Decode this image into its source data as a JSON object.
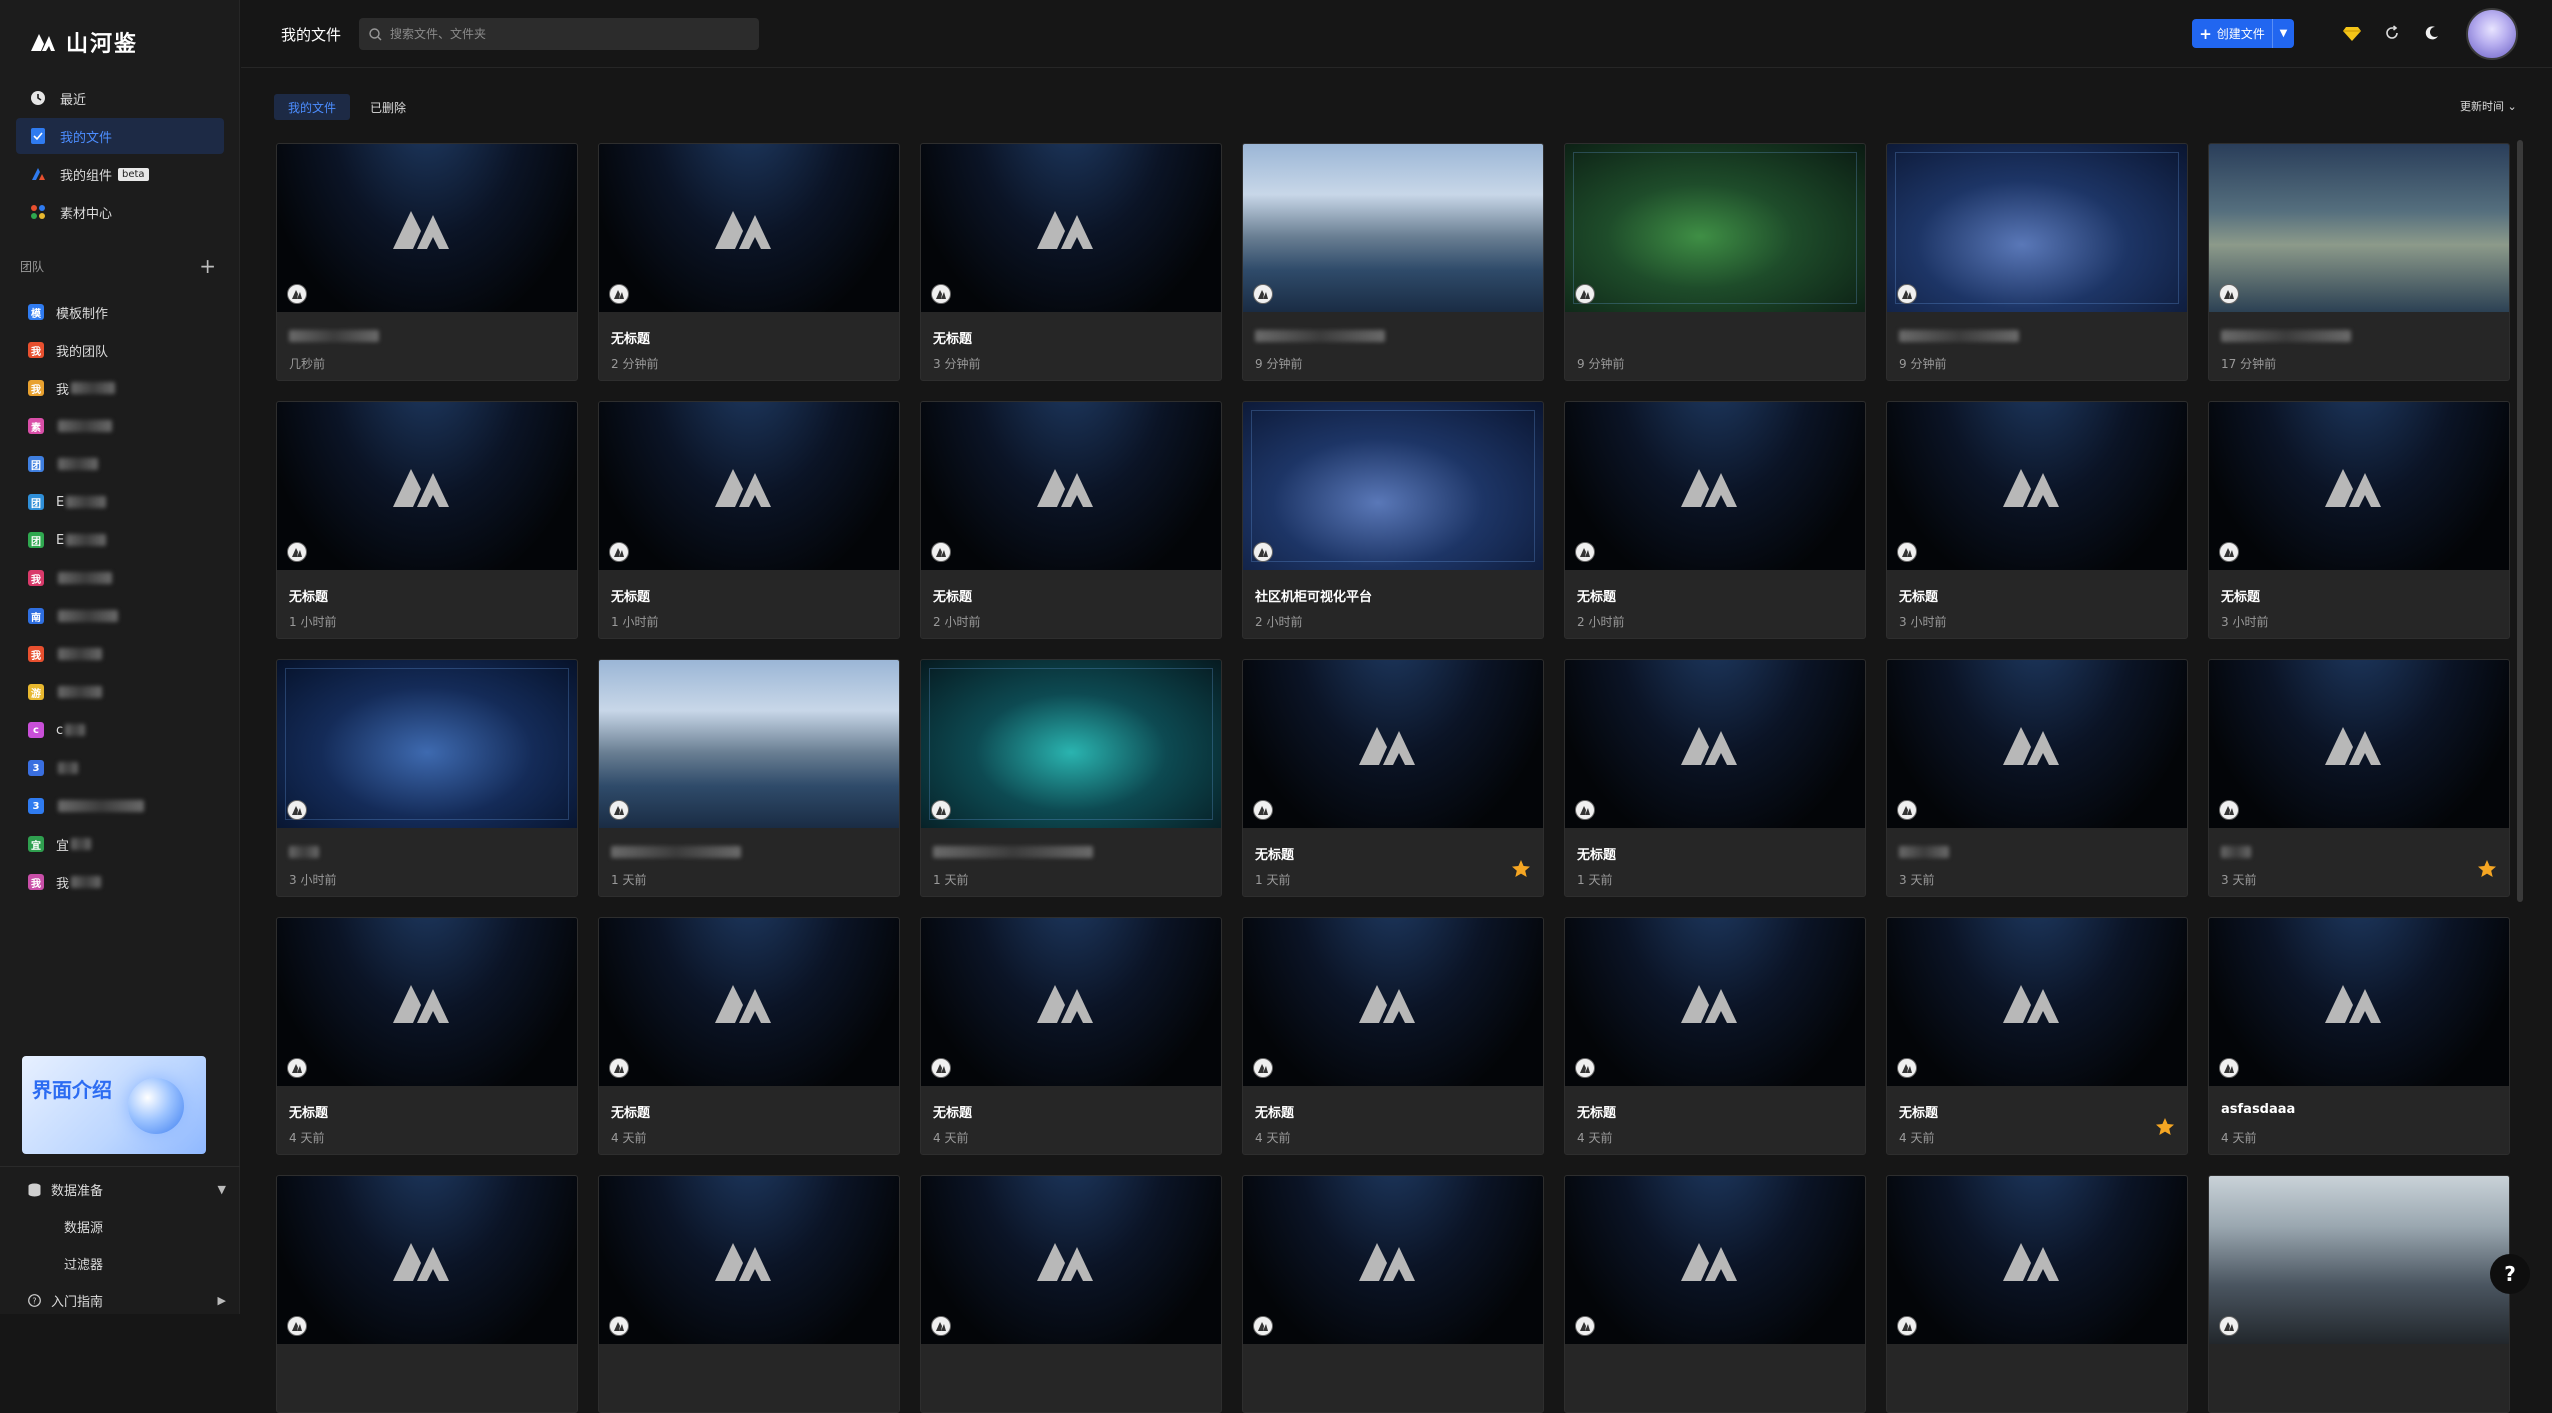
{
  "app": {
    "logo_text": "山河鉴"
  },
  "nav": [
    {
      "label": "最近",
      "icon": "clock-icon",
      "active": false
    },
    {
      "label": "我的文件",
      "icon": "file-icon",
      "active": true
    },
    {
      "label": "我的组件",
      "icon": "component-icon",
      "active": false,
      "badge": "beta"
    },
    {
      "label": "素材中心",
      "icon": "material-icon",
      "active": false
    }
  ],
  "team_section": {
    "title": "团队",
    "add": "+"
  },
  "teams": [
    {
      "badge": "模",
      "color": "#2f7bf0",
      "name": "模板制作"
    },
    {
      "badge": "我",
      "color": "#e8502f",
      "name": "我的团队"
    },
    {
      "badge": "我",
      "color": "#e8a12f",
      "name": "我"
    },
    {
      "badge": "素",
      "color": "#d94fa8",
      "name": ""
    },
    {
      "badge": "团",
      "color": "#3f7fe0",
      "name": ""
    },
    {
      "badge": "团",
      "color": "#2f8fd8",
      "name": "E"
    },
    {
      "badge": "团",
      "color": "#2fa84f",
      "name": "E"
    },
    {
      "badge": "我",
      "color": "#d93a6a",
      "name": ""
    },
    {
      "badge": "南",
      "color": "#2f6fe0",
      "name": ""
    },
    {
      "badge": "我",
      "color": "#e8502f",
      "name": ""
    },
    {
      "badge": "游",
      "color": "#e8b82f",
      "name": ""
    },
    {
      "badge": "c",
      "color": "#c94fd8",
      "name": "c"
    },
    {
      "badge": "3",
      "color": "#3a6fe0",
      "name": ""
    },
    {
      "badge": "3",
      "color": "#2f7bf0",
      "name": ""
    },
    {
      "badge": "宜",
      "color": "#2f9f4f",
      "name": "宜"
    },
    {
      "badge": "我",
      "color": "#c94fa8",
      "name": "我"
    }
  ],
  "promo": {
    "text": "界面介绍"
  },
  "bottom_nav": {
    "data_prep": "数据准备",
    "data_source": "数据源",
    "filter": "过滤器",
    "guide": "入门指南"
  },
  "header": {
    "title": "我的文件",
    "search_placeholder": "搜索文件、文件夹",
    "create_label": "创建文件"
  },
  "tabs": [
    {
      "label": "我的文件",
      "active": true
    },
    {
      "label": "已删除",
      "active": false
    }
  ],
  "sort_label": "更新时间",
  "files": [
    {
      "title": "",
      "time": "几秒前",
      "preview": "default",
      "starred": false
    },
    {
      "title": "无标题",
      "time": "2 分钟前",
      "preview": "default",
      "starred": false
    },
    {
      "title": "无标题",
      "time": "3 分钟前",
      "preview": "default",
      "starred": false
    },
    {
      "title": "",
      "time": "9 分钟前",
      "preview": "p1",
      "starred": false
    },
    {
      "title": "",
      "time": "9 分钟前",
      "preview": "p2",
      "starred": false
    },
    {
      "title": "",
      "time": "9 分钟前",
      "preview": "p3",
      "starred": false
    },
    {
      "title": "",
      "time": "17 分钟前",
      "preview": "p4",
      "starred": false
    },
    {
      "title": "无标题",
      "time": "1 小时前",
      "preview": "default",
      "starred": false
    },
    {
      "title": "无标题",
      "time": "1 小时前",
      "preview": "default",
      "starred": false
    },
    {
      "title": "无标题",
      "time": "2 小时前",
      "preview": "default",
      "starred": false
    },
    {
      "title": "社区机柜可视化平台",
      "time": "2 小时前",
      "preview": "p3",
      "starred": false
    },
    {
      "title": "无标题",
      "time": "2 小时前",
      "preview": "default",
      "starred": false
    },
    {
      "title": "无标题",
      "time": "3 小时前",
      "preview": "default",
      "starred": false
    },
    {
      "title": "无标题",
      "time": "3 小时前",
      "preview": "default",
      "starred": false
    },
    {
      "title": "",
      "time": "3 小时前",
      "preview": "p5",
      "starred": false
    },
    {
      "title": "",
      "time": "1 天前",
      "preview": "p1",
      "starred": false
    },
    {
      "title": "",
      "time": "1 天前",
      "preview": "p6",
      "starred": false
    },
    {
      "title": "无标题",
      "time": "1 天前",
      "preview": "default",
      "starred": true
    },
    {
      "title": "无标题",
      "time": "1 天前",
      "preview": "default",
      "starred": false
    },
    {
      "title": "",
      "time": "3 天前",
      "preview": "default",
      "starred": false
    },
    {
      "title": "",
      "time": "3 天前",
      "preview": "default",
      "starred": true
    },
    {
      "title": "无标题",
      "time": "4 天前",
      "preview": "default",
      "starred": false
    },
    {
      "title": "无标题",
      "time": "4 天前",
      "preview": "default",
      "starred": false
    },
    {
      "title": "无标题",
      "time": "4 天前",
      "preview": "default",
      "starred": false
    },
    {
      "title": "无标题",
      "time": "4 天前",
      "preview": "default",
      "starred": false
    },
    {
      "title": "无标题",
      "time": "4 天前",
      "preview": "default",
      "starred": false
    },
    {
      "title": "无标题",
      "time": "4 天前",
      "preview": "default",
      "starred": true
    },
    {
      "title": "asfasdaaa",
      "time": "4 天前",
      "preview": "default",
      "starred": false
    },
    {
      "title": "",
      "time": "",
      "preview": "default",
      "starred": false
    },
    {
      "title": "",
      "time": "",
      "preview": "default",
      "starred": false
    },
    {
      "title": "",
      "time": "",
      "preview": "default",
      "starred": false
    },
    {
      "title": "",
      "time": "",
      "preview": "default",
      "starred": false
    },
    {
      "title": "",
      "time": "",
      "preview": "default",
      "starred": false
    },
    {
      "title": "",
      "time": "",
      "preview": "default",
      "starred": false
    },
    {
      "title": "",
      "time": "",
      "preview": "p7",
      "starred": false
    }
  ],
  "help_label": "?",
  "colors": {
    "accent": "#2166f0",
    "active_bg": "#1d2a45",
    "star": "#f5a623"
  }
}
